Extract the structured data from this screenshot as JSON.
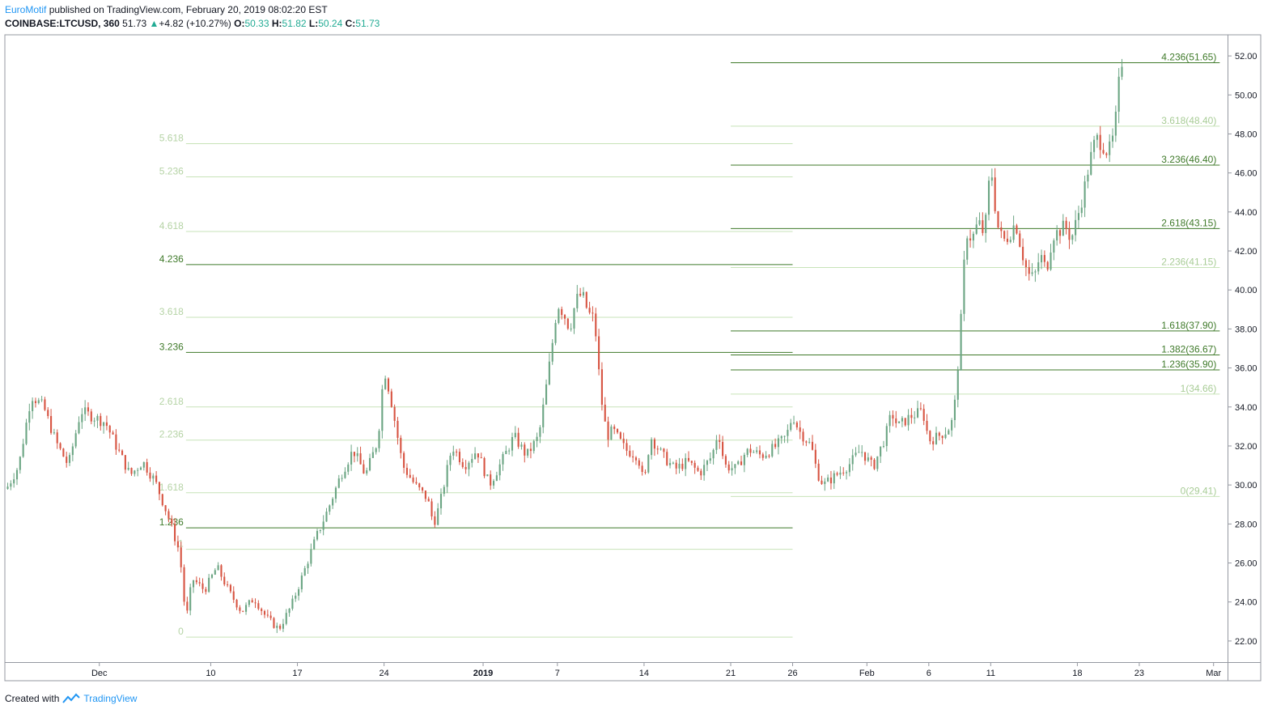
{
  "header": {
    "author": "EuroMotif",
    "published_text": "published on TradingView.com, February 20, 2019 08:02:20 EST",
    "symbol": "COINBASE:LTCUSD, 360",
    "last": "51.73",
    "change_arrow": "▲",
    "change": "+4.82 (+10.27%)",
    "o_label": "O:",
    "o_value": "50.33",
    "h_label": "H:",
    "h_value": "51.82",
    "l_label": "L:",
    "l_value": "50.24",
    "c_label": "C:",
    "c_value": "51.73"
  },
  "footer": {
    "created_with": "Created with",
    "brand": "TradingView"
  },
  "colors": {
    "up": "#6ba583",
    "down": "#d75442",
    "fib_strong": "#3f7a2a",
    "fib_light": "#c7e3b8",
    "axis": "#131722",
    "brand": "#2196f3"
  },
  "chart_data": {
    "type": "candlestick",
    "symbol": "COINBASE:LTCUSD",
    "interval": "360",
    "y_axis": {
      "side": "right",
      "range": [
        21.0,
        53.0
      ],
      "ticks": [
        "22.00",
        "24.00",
        "26.00",
        "28.00",
        "30.00",
        "32.00",
        "34.00",
        "36.00",
        "38.00",
        "40.00",
        "42.00",
        "44.00",
        "46.00",
        "48.00",
        "50.00",
        "52.00"
      ]
    },
    "x_axis": {
      "range_days": [
        -7.5,
        91.0
      ],
      "ticks": [
        {
          "label": "Dec",
          "day": 0
        },
        {
          "label": "10",
          "day": 9
        },
        {
          "label": "17",
          "day": 16
        },
        {
          "label": "24",
          "day": 23
        },
        {
          "label": "2019",
          "day": 31
        },
        {
          "label": "7",
          "day": 37
        },
        {
          "label": "14",
          "day": 44
        },
        {
          "label": "21",
          "day": 51
        },
        {
          "label": "26",
          "day": 56
        },
        {
          "label": "Feb",
          "day": 62
        },
        {
          "label": "6",
          "day": 67
        },
        {
          "label": "11",
          "day": 72
        },
        {
          "label": "18",
          "day": 79
        },
        {
          "label": "23",
          "day": 84
        },
        {
          "label": "Mar",
          "day": 90
        }
      ]
    },
    "price_path": [
      [
        -7.5,
        29.8
      ],
      [
        -6.5,
        31.0
      ],
      [
        -5.5,
        34.6
      ],
      [
        -4.5,
        34.0
      ],
      [
        -3.5,
        32.2
      ],
      [
        -2.5,
        31.0
      ],
      [
        -1.5,
        33.8
      ],
      [
        -0.5,
        33.5
      ],
      [
        0.5,
        33.2
      ],
      [
        1.5,
        31.8
      ],
      [
        2.5,
        30.5
      ],
      [
        3.5,
        31.2
      ],
      [
        4.5,
        30.2
      ],
      [
        5.5,
        28.5
      ],
      [
        6.5,
        26.5
      ],
      [
        7.0,
        23.0
      ],
      [
        7.5,
        25.2
      ],
      [
        8.5,
        24.6
      ],
      [
        9.5,
        25.8
      ],
      [
        10.5,
        24.5
      ],
      [
        11.5,
        23.5
      ],
      [
        12.5,
        24.2
      ],
      [
        13.5,
        23.2
      ],
      [
        14.5,
        22.6
      ],
      [
        15.5,
        23.8
      ],
      [
        16.5,
        25.5
      ],
      [
        17.5,
        27.3
      ],
      [
        18.5,
        28.8
      ],
      [
        19.5,
        30.5
      ],
      [
        20.5,
        31.8
      ],
      [
        21.5,
        30.5
      ],
      [
        22.5,
        32.3
      ],
      [
        23.0,
        36.0
      ],
      [
        23.5,
        34.6
      ],
      [
        24.5,
        31.0
      ],
      [
        25.5,
        30.0
      ],
      [
        26.5,
        29.3
      ],
      [
        27.0,
        28.0
      ],
      [
        27.5,
        29.0
      ],
      [
        28.5,
        32.0
      ],
      [
        29.5,
        31.0
      ],
      [
        30.5,
        31.8
      ],
      [
        31.5,
        30.0
      ],
      [
        32.5,
        31.2
      ],
      [
        33.5,
        32.5
      ],
      [
        34.5,
        31.5
      ],
      [
        35.5,
        32.5
      ],
      [
        36.0,
        34.6
      ],
      [
        36.5,
        36.8
      ],
      [
        37.0,
        39.3
      ],
      [
        37.5,
        38.8
      ],
      [
        38.0,
        38.0
      ],
      [
        38.5,
        39.5
      ],
      [
        39.0,
        39.8
      ],
      [
        39.5,
        38.8
      ],
      [
        40.0,
        38.5
      ],
      [
        40.5,
        34.6
      ],
      [
        41.0,
        32.5
      ],
      [
        41.5,
        32.8
      ],
      [
        42.5,
        31.8
      ],
      [
        43.5,
        31.5
      ],
      [
        44.0,
        30.0
      ],
      [
        44.5,
        32.5
      ],
      [
        45.5,
        31.5
      ],
      [
        46.5,
        30.8
      ],
      [
        47.5,
        31.2
      ],
      [
        48.5,
        30.6
      ],
      [
        49.5,
        31.5
      ],
      [
        50.0,
        32.8
      ],
      [
        50.5,
        31.0
      ],
      [
        51.5,
        30.8
      ],
      [
        52.0,
        31.5
      ],
      [
        52.5,
        31.8
      ],
      [
        53.5,
        31.5
      ],
      [
        54.5,
        31.9
      ],
      [
        55.5,
        32.5
      ],
      [
        56.0,
        33.6
      ],
      [
        56.5,
        32.8
      ],
      [
        57.5,
        32.0
      ],
      [
        58.0,
        30.6
      ],
      [
        58.5,
        30.0
      ],
      [
        59.5,
        30.5
      ],
      [
        60.5,
        31.0
      ],
      [
        61.5,
        31.8
      ],
      [
        62.5,
        30.9
      ],
      [
        63.5,
        32.5
      ],
      [
        64.0,
        33.7
      ],
      [
        64.5,
        33.0
      ],
      [
        65.5,
        33.5
      ],
      [
        66.5,
        33.8
      ],
      [
        67.0,
        32.3
      ],
      [
        67.5,
        32.4
      ],
      [
        68.5,
        32.8
      ],
      [
        69.0,
        33.4
      ],
      [
        69.5,
        37.3
      ],
      [
        70.0,
        43.0
      ],
      [
        70.5,
        42.6
      ],
      [
        71.0,
        43.5
      ],
      [
        71.5,
        42.8
      ],
      [
        72.0,
        46.5
      ],
      [
        72.5,
        43.4
      ],
      [
        73.0,
        42.5
      ],
      [
        73.5,
        42.8
      ],
      [
        74.0,
        43.5
      ],
      [
        74.5,
        42.0
      ],
      [
        75.0,
        40.8
      ],
      [
        75.5,
        40.6
      ],
      [
        76.0,
        41.8
      ],
      [
        76.5,
        41.0
      ],
      [
        77.0,
        42.8
      ],
      [
        77.5,
        43.0
      ],
      [
        78.0,
        43.3
      ],
      [
        78.5,
        42.6
      ],
      [
        79.0,
        43.7
      ],
      [
        79.5,
        45.0
      ],
      [
        80.0,
        46.6
      ],
      [
        80.5,
        47.8
      ],
      [
        81.0,
        47.5
      ],
      [
        81.5,
        47.0
      ],
      [
        82.0,
        48.0
      ],
      [
        82.3,
        50.3
      ],
      [
        82.6,
        51.73
      ]
    ],
    "fib_left": {
      "x_range_days": [
        7.0,
        56.0
      ],
      "levels": [
        {
          "label": "5.618",
          "price": 47.5,
          "strong": false
        },
        {
          "label": "5.236",
          "price": 45.8,
          "strong": false
        },
        {
          "label": "4.618",
          "price": 43.0,
          "strong": false
        },
        {
          "label": "4.236",
          "price": 41.3,
          "strong": true
        },
        {
          "label": "3.618",
          "price": 38.6,
          "strong": false
        },
        {
          "label": "3.236",
          "price": 36.8,
          "strong": true
        },
        {
          "label": "2.618",
          "price": 34.0,
          "strong": false
        },
        {
          "label": "2.236",
          "price": 32.3,
          "strong": false
        },
        {
          "label": "1.618",
          "price": 29.6,
          "strong": false
        },
        {
          "label": "1.236",
          "price": 27.8,
          "strong": true
        },
        {
          "label": "1",
          "price": 26.7,
          "strong": false
        },
        {
          "label": "0",
          "price": 22.2,
          "strong": false
        }
      ]
    },
    "fib_right": {
      "x_range_days": [
        51.0,
        90.5
      ],
      "levels": [
        {
          "label": "4.236(51.65)",
          "price": 51.65,
          "strong": true
        },
        {
          "label": "3.618(48.40)",
          "price": 48.4,
          "strong": false
        },
        {
          "label": "3.236(46.40)",
          "price": 46.4,
          "strong": true
        },
        {
          "label": "2.618(43.15)",
          "price": 43.15,
          "strong": true
        },
        {
          "label": "2.236(41.15)",
          "price": 41.15,
          "strong": false
        },
        {
          "label": "1.618(37.90)",
          "price": 37.9,
          "strong": true
        },
        {
          "label": "1.382(36.67)",
          "price": 36.67,
          "strong": true
        },
        {
          "label": "1.236(35.90)",
          "price": 35.9,
          "strong": true
        },
        {
          "label": "1(34.66)",
          "price": 34.66,
          "strong": false
        },
        {
          "label": "0(29.41)",
          "price": 29.41,
          "strong": false
        }
      ]
    }
  }
}
